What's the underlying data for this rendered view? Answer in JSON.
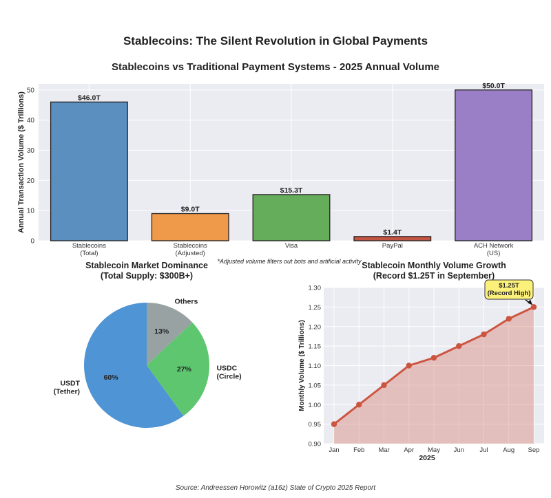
{
  "suptitle": "Stablecoins: The Silent Revolution in Global Payments",
  "source": "Source: Andreessen Horowitz (a16z) State of Crypto 2025 Report",
  "chart_data": [
    {
      "type": "bar",
      "title": "Stablecoins vs Traditional Payment Systems - 2025 Annual Volume",
      "ylabel": "Annual Transaction Volume ($ Trillions)",
      "xlabel": "",
      "ylim": [
        0,
        52
      ],
      "yticks": [
        0,
        10,
        20,
        30,
        40,
        50
      ],
      "categories": [
        [
          "Stablecoins",
          "(Total)"
        ],
        [
          "Stablecoins",
          "(Adjusted)"
        ],
        [
          "Visa"
        ],
        [
          "PayPal"
        ],
        [
          "ACH Network",
          "(US)"
        ]
      ],
      "values": [
        46.0,
        9.0,
        15.3,
        1.4,
        50.0
      ],
      "value_labels": [
        "$46.0T",
        "$9.0T",
        "$15.3T",
        "$1.4T",
        "$50.0T"
      ],
      "colors": [
        "#5a8fc0",
        "#ef9a4b",
        "#66ad5b",
        "#c45444",
        "#9b7fc6"
      ],
      "annotation": "*Adjusted volume filters out bots and artificial activity",
      "grid": true
    },
    {
      "type": "pie",
      "title": "Stablecoin Market Dominance\n(Total Supply: $300B+)",
      "slices": [
        {
          "label": "USDT\n(Tether)",
          "value": 60,
          "pct_label": "60%",
          "color": "#4f94d4"
        },
        {
          "label": "USDC\n(Circle)",
          "value": 27,
          "pct_label": "27%",
          "color": "#5dc66f"
        },
        {
          "label": "Others",
          "value": 13,
          "pct_label": "13%",
          "color": "#98a2a3"
        }
      ]
    },
    {
      "type": "area",
      "title": "Stablecoin Monthly Volume Growth\n(Record $1.25T in September)",
      "xlabel": "2025",
      "ylabel": "Monthly Volume ($ Trillions)",
      "x": [
        "Jan",
        "Feb",
        "Mar",
        "Apr",
        "May",
        "Jun",
        "Jul",
        "Aug",
        "Sep"
      ],
      "y": [
        0.95,
        1.0,
        1.05,
        1.1,
        1.12,
        1.15,
        1.18,
        1.22,
        1.25
      ],
      "ylim": [
        0.9,
        1.3
      ],
      "yticks": [
        0.9,
        0.95,
        1.0,
        1.05,
        1.1,
        1.15,
        1.2,
        1.25,
        1.3
      ],
      "ytick_labels": [
        "0.90",
        "0.95",
        "1.00",
        "1.05",
        "1.10",
        "1.15",
        "1.20",
        "1.25",
        "1.30"
      ],
      "color": "#cc5540",
      "annotation": "$1.25T\n(Record High)",
      "grid": true
    }
  ]
}
